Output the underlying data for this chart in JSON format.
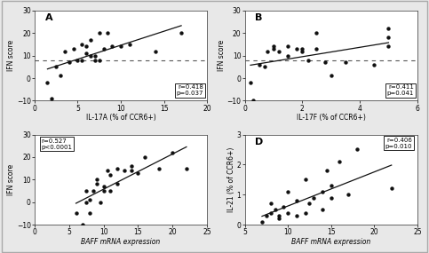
{
  "panel_A": {
    "label": "A",
    "x": [
      1.5,
      2.0,
      2.5,
      3.0,
      3.5,
      4.0,
      4.5,
      5.0,
      5.5,
      5.5,
      6.0,
      6.0,
      6.5,
      6.5,
      7.0,
      7.0,
      7.5,
      7.5,
      8.0,
      8.5,
      9.0,
      10.0,
      11.0,
      14.0,
      17.0
    ],
    "y": [
      -2.0,
      -9.0,
      5.0,
      1.0,
      12.0,
      7.0,
      13.0,
      8.0,
      8.0,
      15.0,
      11.0,
      14.0,
      10.0,
      17.0,
      8.0,
      10.0,
      8.0,
      20.0,
      13.0,
      20.0,
      14.0,
      14.0,
      15.0,
      12.0,
      20.0
    ],
    "xlabel": "IL-17A (% of CCR6+)",
    "ylabel": "IFN score",
    "xlim": [
      0,
      20
    ],
    "ylim": [
      -10,
      30
    ],
    "xticks": [
      0,
      5,
      10,
      15,
      20
    ],
    "yticks": [
      -10,
      0,
      10,
      20,
      30
    ],
    "dashed_y": 8.0,
    "annotation": "r=0.418\np=0.037",
    "annot_loc": "lower right",
    "xlabel_italic": false
  },
  "panel_B": {
    "label": "B",
    "x": [
      0.2,
      0.3,
      0.5,
      0.7,
      0.8,
      1.0,
      1.0,
      1.2,
      1.5,
      1.5,
      1.8,
      2.0,
      2.0,
      2.2,
      2.5,
      2.5,
      2.8,
      3.0,
      3.5,
      4.5,
      5.0,
      5.0,
      5.0
    ],
    "y": [
      -2.0,
      -10.0,
      6.0,
      5.0,
      12.0,
      13.0,
      14.0,
      12.0,
      10.0,
      14.0,
      13.0,
      13.0,
      12.0,
      8.0,
      13.0,
      20.0,
      7.0,
      1.0,
      7.0,
      6.0,
      18.0,
      14.0,
      22.0
    ],
    "xlabel": "IL-17F (% of CCR6+)",
    "ylabel": "IFN score",
    "xlim": [
      0,
      6
    ],
    "ylim": [
      -10,
      30
    ],
    "xticks": [
      0,
      2,
      4,
      6
    ],
    "yticks": [
      -10,
      0,
      10,
      20,
      30
    ],
    "dashed_y": 8.0,
    "annotation": "r=0.411\np=0.041",
    "annot_loc": "lower right",
    "xlabel_italic": false
  },
  "panel_C": {
    "label": "C",
    "x": [
      6.0,
      7.0,
      7.5,
      7.5,
      8.0,
      8.0,
      8.5,
      9.0,
      9.0,
      9.5,
      10.0,
      10.0,
      10.5,
      11.0,
      11.0,
      12.0,
      12.0,
      13.0,
      14.0,
      14.0,
      15.0,
      16.0,
      18.0,
      20.0,
      22.0
    ],
    "y": [
      -5.0,
      -10.0,
      0.0,
      5.0,
      -5.0,
      1.0,
      5.0,
      8.0,
      10.0,
      0.0,
      5.0,
      7.0,
      14.0,
      5.0,
      12.0,
      8.0,
      15.0,
      14.0,
      16.0,
      14.0,
      13.0,
      20.0,
      15.0,
      22.0,
      15.0
    ],
    "xlabel": "BAFF mRNA expression",
    "ylabel": "IFN score",
    "xlim": [
      0,
      25
    ],
    "ylim": [
      -10,
      30
    ],
    "xticks": [
      0,
      5,
      10,
      15,
      20,
      25
    ],
    "yticks": [
      -10,
      0,
      10,
      20,
      30
    ],
    "dashed_y": null,
    "annotation": "r=0.527\np<0.0001",
    "annot_loc": "upper left",
    "xlabel_italic": true
  },
  "panel_D": {
    "label": "D",
    "x": [
      7.0,
      7.5,
      8.0,
      8.0,
      8.5,
      9.0,
      9.0,
      9.5,
      10.0,
      10.0,
      11.0,
      11.0,
      12.0,
      12.0,
      12.5,
      13.0,
      14.0,
      14.0,
      14.5,
      15.0,
      15.0,
      16.0,
      17.0,
      18.0,
      22.0
    ],
    "y": [
      0.1,
      0.3,
      0.4,
      0.7,
      0.5,
      0.2,
      0.3,
      0.6,
      0.4,
      1.1,
      0.3,
      0.8,
      0.4,
      1.5,
      0.7,
      0.9,
      0.5,
      1.1,
      1.8,
      0.9,
      1.3,
      2.1,
      1.0,
      2.5,
      1.2
    ],
    "xlabel": "BAFF mRNA expression",
    "ylabel": "IL-21 (% of CCR6+)",
    "xlim": [
      5,
      25
    ],
    "ylim": [
      0,
      3
    ],
    "xticks": [
      5,
      10,
      15,
      20,
      25
    ],
    "yticks": [
      0,
      1,
      2,
      3
    ],
    "dashed_y": null,
    "annotation": "r=0.406\np=0.010",
    "annot_loc": "upper right",
    "xlabel_italic": true
  },
  "figure_bg": "#e8e8e8",
  "plot_bg": "#ffffff",
  "dot_color": "#111111",
  "dot_size": 10,
  "line_color": "#111111",
  "dashed_color": "#555555",
  "tick_fontsize": 5.5,
  "label_fontsize": 5.5,
  "panel_label_fontsize": 8,
  "annot_fontsize": 5.0
}
